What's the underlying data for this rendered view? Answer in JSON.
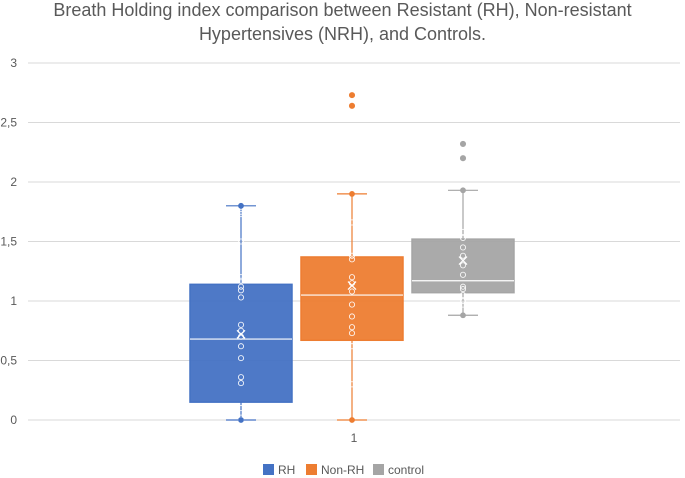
{
  "chart_data": {
    "type": "boxplot",
    "title_lines": [
      "Breath Holding index comparison between Resistant (RH), Non-resistant",
      "Hypertensives (NRH), and Controls."
    ],
    "categories": [
      "1"
    ],
    "ylim": [
      0,
      3
    ],
    "yticks": [
      {
        "value": 0,
        "label": "0"
      },
      {
        "value": 0.5,
        "label": "0,5"
      },
      {
        "value": 1,
        "label": "1"
      },
      {
        "value": 1.5,
        "label": "1,5"
      },
      {
        "value": 2,
        "label": "2"
      },
      {
        "value": 2.5,
        "label": "2,5"
      },
      {
        "value": 3,
        "label": "3"
      }
    ],
    "grid": true,
    "legend_position": "bottom",
    "series": [
      {
        "name": "RH",
        "color": "#4472C4",
        "whisker_low": 0.0,
        "q1": 0.15,
        "median": 0.68,
        "q3": 1.14,
        "whisker_high": 1.8,
        "mean": 0.72,
        "points": [
          0.0,
          0.02,
          0.1,
          0.31,
          0.36,
          0.52,
          0.62,
          0.7,
          0.75,
          0.8,
          1.03,
          1.09,
          1.12,
          1.17,
          1.2,
          1.5,
          1.73,
          1.75
        ]
      },
      {
        "name": "Non-RH",
        "color": "#ED7D31",
        "whisker_low": 0.0,
        "q1": 0.67,
        "median": 1.05,
        "q3": 1.37,
        "whisker_high": 1.9,
        "mean": 1.13,
        "points": [
          0.3,
          0.62,
          0.73,
          0.78,
          0.87,
          0.97,
          1.08,
          1.15,
          1.2,
          1.35,
          1.38,
          1.66,
          2.64,
          2.73
        ]
      },
      {
        "name": "control",
        "color": "#A5A5A5",
        "whisker_low": 0.88,
        "q1": 1.07,
        "median": 1.17,
        "q3": 1.52,
        "whisker_high": 1.93,
        "mean": 1.34,
        "points": [
          0.97,
          1.0,
          1.05,
          1.1,
          1.12,
          1.22,
          1.3,
          1.38,
          1.45,
          1.53,
          1.58,
          2.2,
          2.32
        ]
      }
    ]
  }
}
